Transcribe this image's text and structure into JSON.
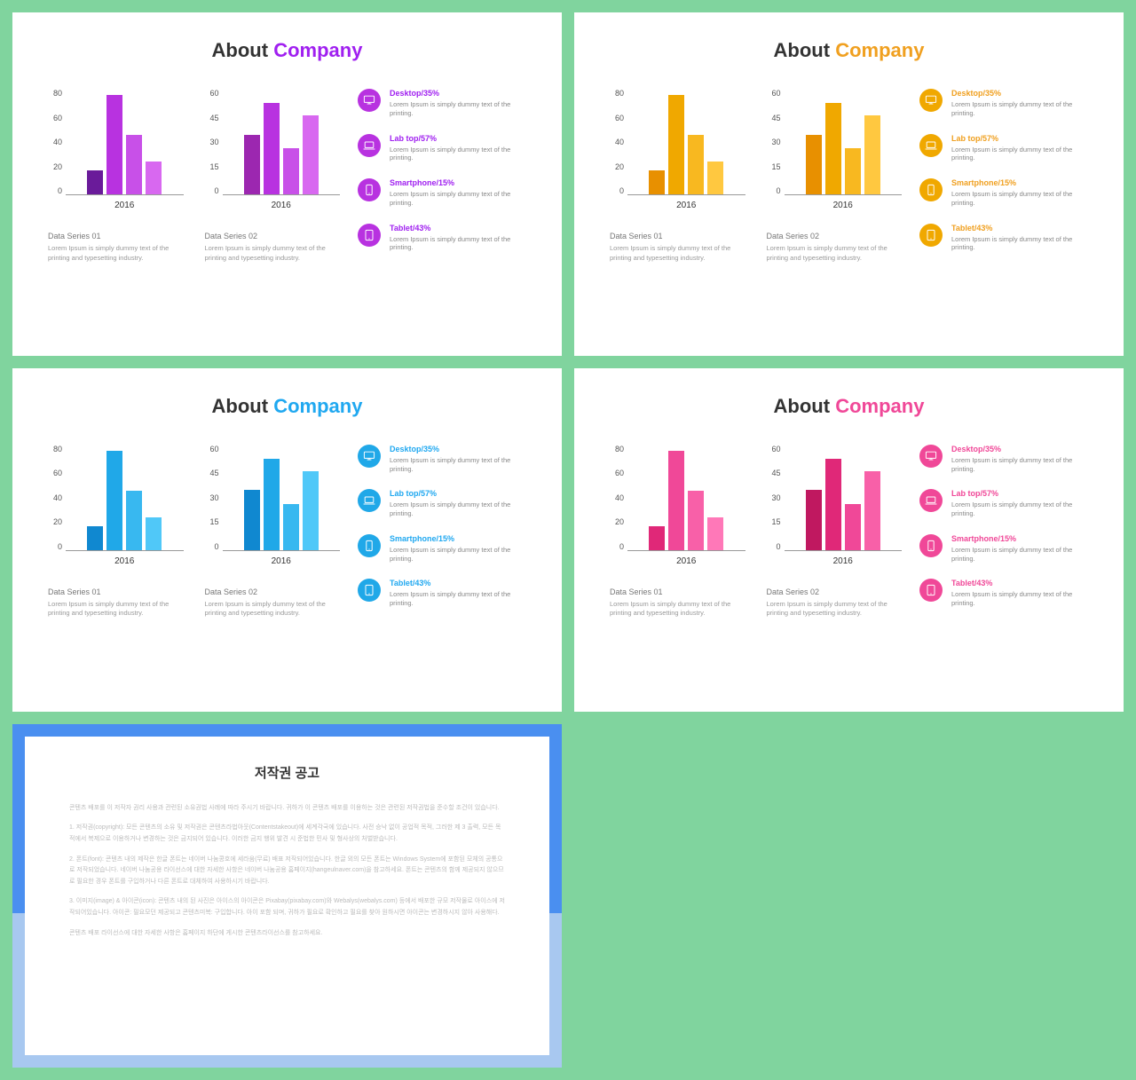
{
  "page_background": "#80d49e",
  "slide_background": "#ffffff",
  "title_prefix": "About ",
  "title_accent": "Company",
  "title_color": "#333333",
  "title_fontsize": 22,
  "chart1": {
    "type": "bar",
    "ymax": 80,
    "ytick_step": 20,
    "yticks": [
      "0",
      "20",
      "40",
      "60",
      "80"
    ],
    "values": [
      18,
      75,
      45,
      25
    ],
    "xlabel": "2016",
    "series_label": "Data Series 01",
    "series_desc": "Lorem Ipsum is simply dummy text of the printing and typesetting industry."
  },
  "chart2": {
    "type": "bar",
    "ymax": 60,
    "ytick_step": 15,
    "yticks": [
      "0",
      "15",
      "30",
      "45",
      "60"
    ],
    "values": [
      34,
      52,
      26,
      45
    ],
    "xlabel": "2016",
    "series_label": "Data Series 02",
    "series_desc": "Lorem Ipsum is simply dummy text of the printing and typesetting industry."
  },
  "legend": [
    {
      "title": "Desktop/35%",
      "desc": "Lorem Ipsum is simply dummy text of the printing.",
      "icon": "desktop"
    },
    {
      "title": "Lab top/57%",
      "desc": "Lorem Ipsum is simply dummy text of the printing.",
      "icon": "laptop"
    },
    {
      "title": "Smartphone/15%",
      "desc": "Lorem Ipsum is simply dummy text of the printing.",
      "icon": "phone"
    },
    {
      "title": "Tablet/43%",
      "desc": "Lorem Ipsum is simply dummy text of the printing.",
      "icon": "tablet"
    }
  ],
  "variants": [
    {
      "accent": "#a020f0",
      "bar_colors1": [
        "#6a1b9a",
        "#b832e0",
        "#c850e8",
        "#d868f0"
      ],
      "bar_colors2": [
        "#9c27b0",
        "#b832e0",
        "#c850e8",
        "#d868f0"
      ],
      "icon_bg": "#b832e0"
    },
    {
      "accent": "#f0a020",
      "bar_colors1": [
        "#e89000",
        "#f0a800",
        "#f8b820",
        "#ffc840"
      ],
      "bar_colors2": [
        "#e89000",
        "#f0a800",
        "#f8b820",
        "#ffc840"
      ],
      "icon_bg": "#f0a800"
    },
    {
      "accent": "#20a8f0",
      "bar_colors1": [
        "#1088d0",
        "#20a8e8",
        "#38b8f0",
        "#50c8f8"
      ],
      "bar_colors2": [
        "#1088d0",
        "#20a8e8",
        "#38b8f0",
        "#50c8f8"
      ],
      "icon_bg": "#20a8e8"
    },
    {
      "accent": "#f04898",
      "bar_colors1": [
        "#e02878",
        "#f04898",
        "#f860a8",
        "#ff78b8"
      ],
      "bar_colors2": [
        "#c01860",
        "#e02878",
        "#f04898",
        "#f860a8"
      ],
      "icon_bg": "#f04898"
    }
  ],
  "copyright": {
    "title": "저작권 공고",
    "border_top": "#4a8ff0",
    "border_bottom": "#a8c8f0",
    "paragraphs": [
      "콘텐츠 배포를 이 저작자 권리 사용과 관련된 소유권법 사례에 따라 주시기 바랍니다. 귀하가 이 콘텐츠 배포를 이용하는 것은 관련된 저작권법을 준수할 조건이 있습니다.",
      "1. 저작권(copyright): 모든 콘텐츠의 소유 및 저작권은 콘텐츠라법아웃(Contentstakeout)에 세계각국에 있습니다. 사전 승낙 없이 공업적 목적, 그러한 제 3 출력, 모든 목적에서 복제으로 이용하거나 변경하는 것은 금지되어 있습니다. 이러한 금지 행위 발견 시 준법한 민사 및 형사상의 처벌받습니다.",
      "2. 폰트(font): 콘텐츠 내의 제작은 한글 폰트는 네이버 나눔콩호에 세라움(무료) 배표 저작되어있습니다. 한글 외의 모든 폰트는 Windows System에 포함된 모체의 공통으로 저작되었습니다. 네이버 나눔공용 라이선스에 대한 자세한 사항은 네이버 나눔공용 홈페이지(hangeulnaver.com)을 참고하세요. 폰트는 콘텐츠의 함께 제공되지 않으므로 필요한 경우 폰트를 구입하거나 다른 폰트로 대체하여 사용하시기 바랍니다.",
      "3. 이미지(image) & 아이콘(icon): 콘텐츠 내의 된 사진은 아이스의 아이콘은 Pixabay(pixabay.com)와 Webalys(webalys.com) 등에서 배포한 규모 저작물로 아이스에 저작되어있습니다. 아이콘: 필요모던 제공되고 콘텐츠미복: 구입합니다. 아이 포함 되며, 귀하가 필요로 확인하고 필요를 찾아 원하시면 아이콘는 변경하시지 않아 사용해다.",
      "콘텐츠 배포 라이선스에 대한 자세한 사항은 홈페이지 하단에 게시한 콘텐츠라이선스를 참고하세요."
    ]
  }
}
